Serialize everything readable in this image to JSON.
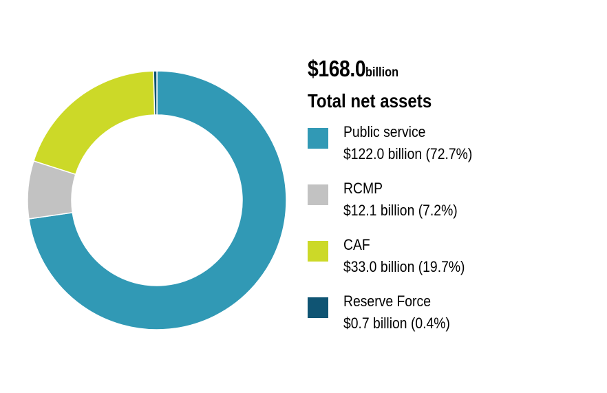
{
  "chart_data": {
    "type": "pie",
    "variant": "donut",
    "total": {
      "value": "$168.0",
      "unit": "billion",
      "label": "Total net assets"
    },
    "categories": [
      "Public service",
      "RCMP",
      "CAF",
      "Reserve Force"
    ],
    "values": [
      122.0,
      12.1,
      33.0,
      0.7
    ],
    "value_labels": [
      "$122.0 billion (72.7%)",
      "$12.1 billion (7.2%)",
      "$33.0 billion (19.7%)",
      "$0.7 billion (0.4%)"
    ],
    "colors": [
      "#3199b5",
      "#c2c2c2",
      "#ccd928",
      "#0f5473"
    ],
    "legend_position": "right"
  }
}
